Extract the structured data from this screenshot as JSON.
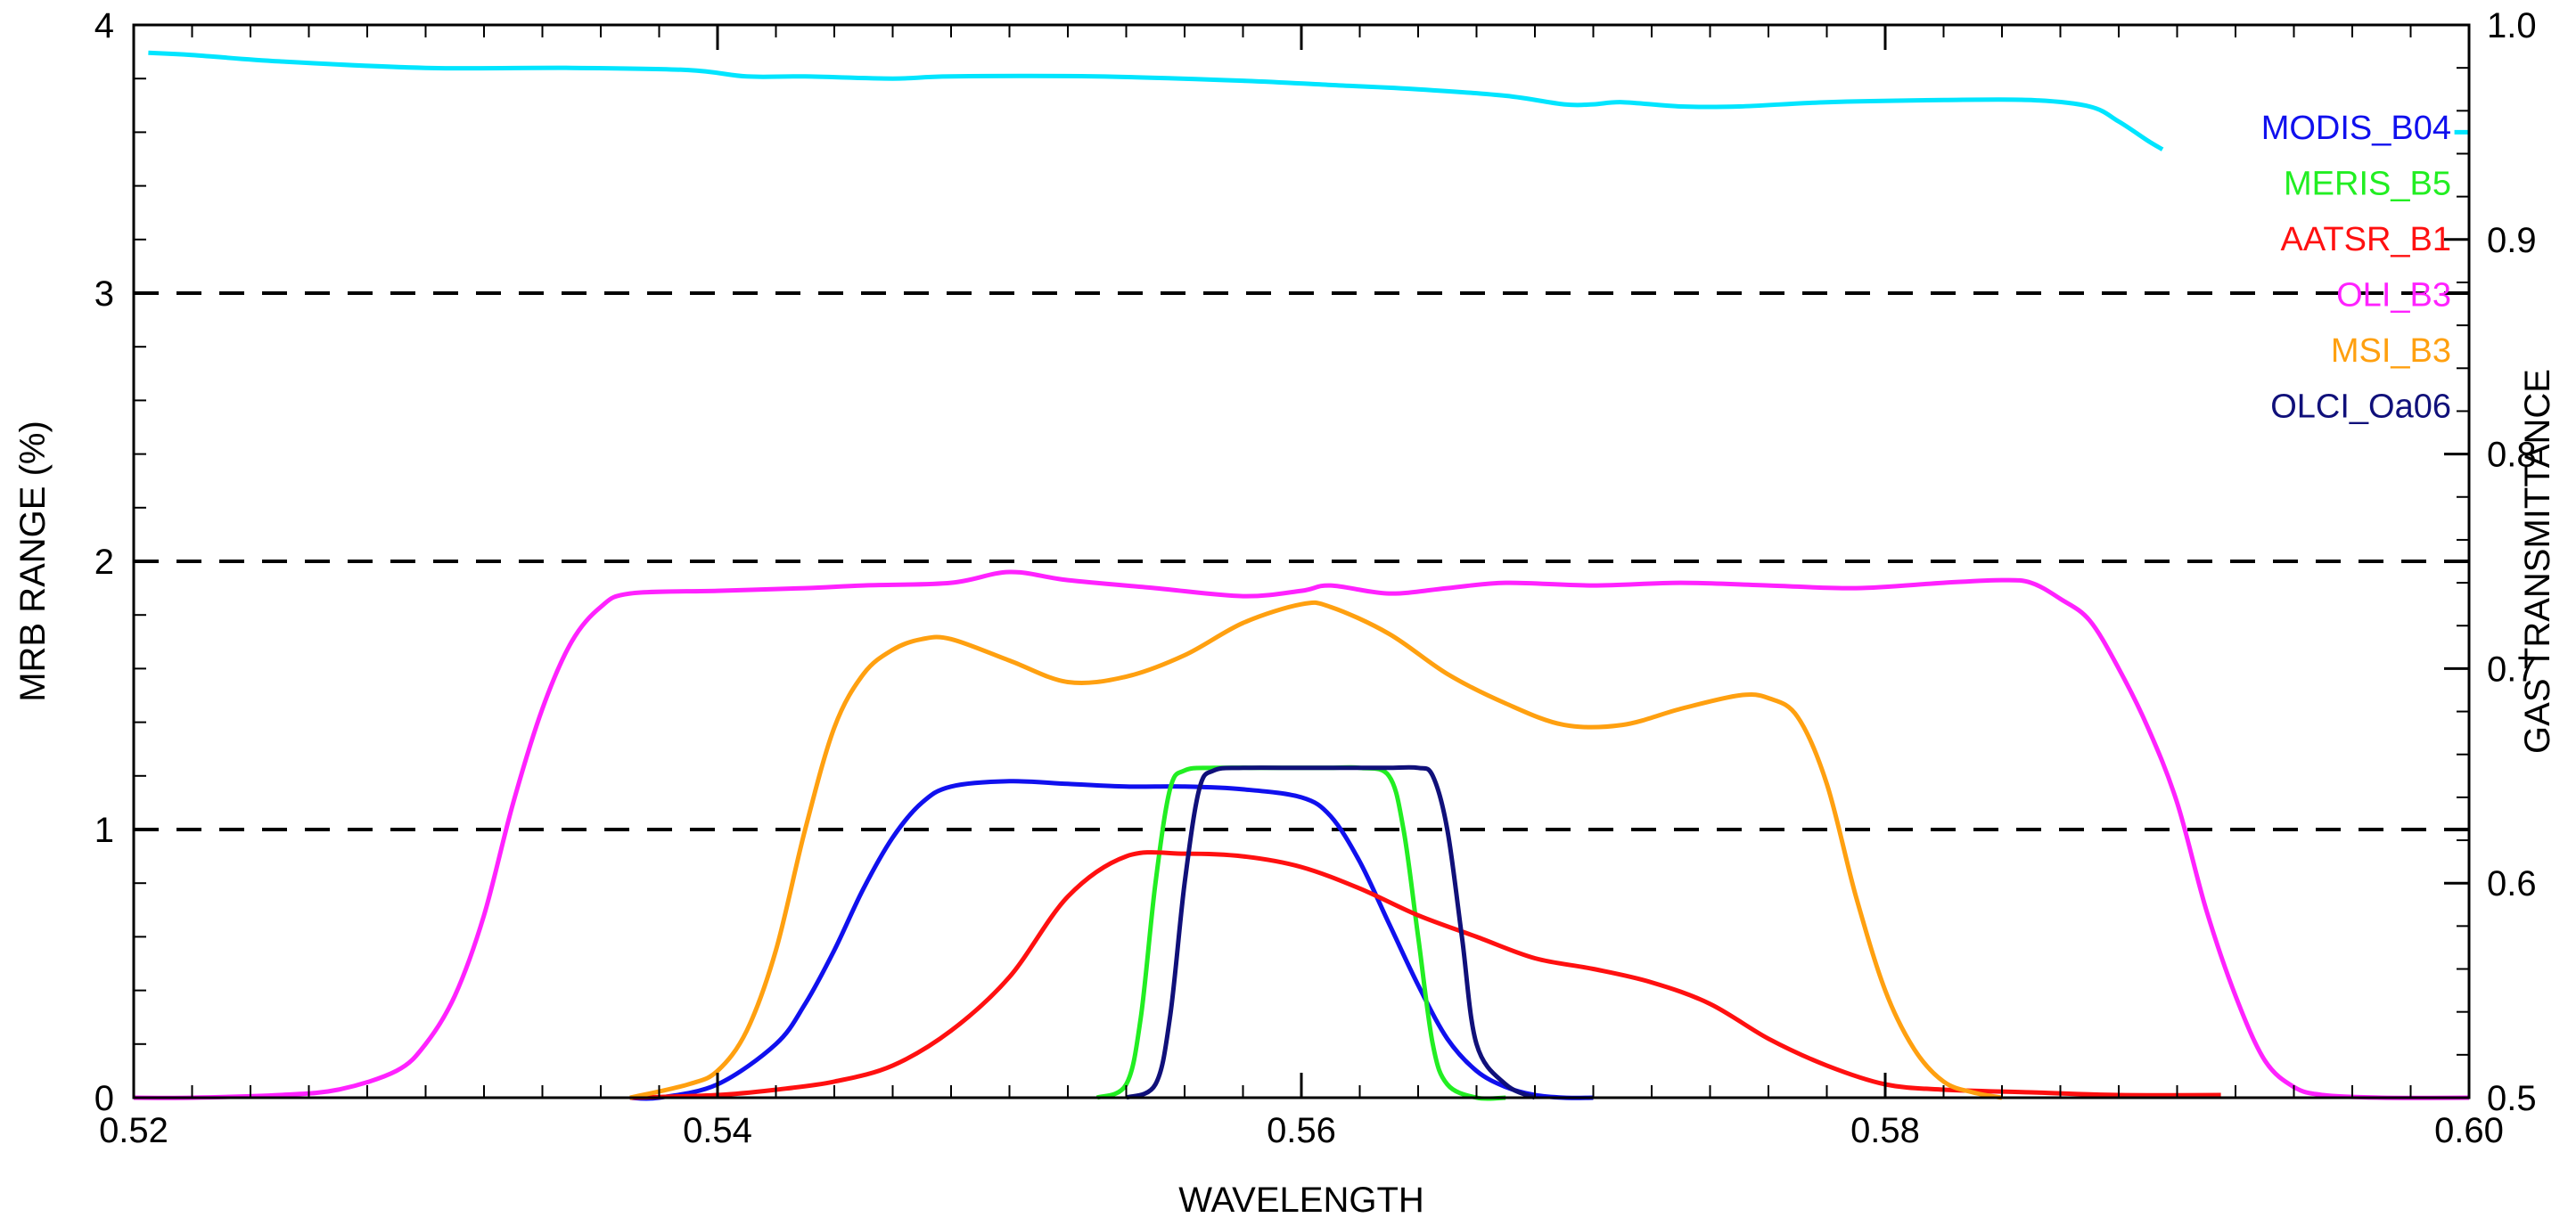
{
  "chart_data": {
    "type": "line",
    "title": "",
    "xlabel": "WAVELENGTH",
    "ylabel": "MRB RANGE (%)",
    "y2label": "GAS TRANSMITTANCE",
    "xlim": [
      0.52,
      0.6
    ],
    "ylim": [
      0,
      4
    ],
    "y2lim": [
      0.5,
      1.0
    ],
    "xticks": [
      "0.52",
      "0.54",
      "0.56",
      "0.58",
      "0.60"
    ],
    "yticks": [
      "0",
      "1",
      "2",
      "3",
      "4"
    ],
    "y2ticks": [
      "0.5",
      "0.6",
      "0.7",
      "0.8",
      "0.9",
      "1.0"
    ],
    "reference_lines": [
      1,
      2,
      3
    ],
    "legend_position": "top-right",
    "gas_transmittance": {
      "name": "Gas transmittance",
      "color": "#00e5ff",
      "x": [
        0.5205,
        0.522,
        0.525,
        0.53,
        0.535,
        0.539,
        0.541,
        0.543,
        0.546,
        0.548,
        0.553,
        0.558,
        0.561,
        0.564,
        0.567,
        0.569,
        0.57,
        0.571,
        0.573,
        0.575,
        0.578,
        0.582,
        0.585,
        0.587,
        0.588,
        0.589,
        0.5895,
        0.5995,
        0.6
      ],
      "values": [
        0.987,
        0.986,
        0.983,
        0.98,
        0.98,
        0.979,
        0.976,
        0.976,
        0.975,
        0.976,
        0.976,
        0.974,
        0.972,
        0.97,
        0.967,
        0.963,
        0.963,
        0.964,
        0.962,
        0.962,
        0.964,
        0.965,
        0.965,
        0.962,
        0.955,
        0.946,
        0.942,
        0.95,
        0.95
      ]
    },
    "series": [
      {
        "name": "MODIS_B04",
        "color": "#1010ee",
        "x": [
          0.537,
          0.538,
          0.54,
          0.542,
          0.543,
          0.544,
          0.545,
          0.546,
          0.547,
          0.548,
          0.55,
          0.552,
          0.554,
          0.556,
          0.558,
          0.56,
          0.561,
          0.562,
          0.563,
          0.564,
          0.565,
          0.566,
          0.567,
          0.568,
          0.569,
          0.57
        ],
        "values": [
          0.0,
          0.0,
          0.05,
          0.2,
          0.35,
          0.55,
          0.78,
          0.97,
          1.1,
          1.16,
          1.18,
          1.17,
          1.16,
          1.16,
          1.15,
          1.12,
          1.05,
          0.88,
          0.65,
          0.42,
          0.22,
          0.1,
          0.04,
          0.01,
          0.0,
          0.0
        ]
      },
      {
        "name": "MERIS_B5",
        "color": "#22ee22",
        "x": [
          0.553,
          0.554,
          0.5545,
          0.555,
          0.5555,
          0.556,
          0.557,
          0.559,
          0.561,
          0.562,
          0.563,
          0.5635,
          0.564,
          0.5645,
          0.565,
          0.566,
          0.567
        ],
        "values": [
          0.0,
          0.05,
          0.3,
          0.8,
          1.15,
          1.22,
          1.23,
          1.23,
          1.23,
          1.23,
          1.2,
          1.0,
          0.6,
          0.2,
          0.05,
          0.0,
          0.0
        ]
      },
      {
        "name": "AATSR_B1",
        "color": "#ff1010",
        "x": [
          0.537,
          0.54,
          0.542,
          0.544,
          0.546,
          0.548,
          0.55,
          0.552,
          0.554,
          0.556,
          0.558,
          0.56,
          0.562,
          0.564,
          0.566,
          0.568,
          0.57,
          0.572,
          0.574,
          0.576,
          0.578,
          0.58,
          0.582,
          0.585,
          0.588,
          0.5915
        ],
        "values": [
          0.0,
          0.01,
          0.03,
          0.06,
          0.12,
          0.25,
          0.45,
          0.75,
          0.9,
          0.91,
          0.9,
          0.86,
          0.78,
          0.68,
          0.6,
          0.52,
          0.48,
          0.43,
          0.35,
          0.22,
          0.12,
          0.05,
          0.03,
          0.02,
          0.01,
          0.01
        ]
      },
      {
        "name": "OLI_B3",
        "color": "#ff22ff",
        "x": [
          0.52,
          0.522,
          0.525,
          0.527,
          0.529,
          0.53,
          0.531,
          0.532,
          0.533,
          0.534,
          0.535,
          0.536,
          0.537,
          0.54,
          0.543,
          0.545,
          0.548,
          0.55,
          0.552,
          0.555,
          0.558,
          0.56,
          0.561,
          0.563,
          0.565,
          0.567,
          0.57,
          0.573,
          0.576,
          0.579,
          0.582,
          0.584,
          0.585,
          0.586,
          0.587,
          0.588,
          0.589,
          0.59,
          0.591,
          0.592,
          0.593,
          0.594,
          0.595,
          0.597,
          0.6
        ],
        "values": [
          0.0,
          0.0,
          0.01,
          0.03,
          0.1,
          0.2,
          0.38,
          0.68,
          1.1,
          1.45,
          1.7,
          1.83,
          1.88,
          1.89,
          1.9,
          1.91,
          1.92,
          1.96,
          1.93,
          1.9,
          1.87,
          1.89,
          1.91,
          1.88,
          1.9,
          1.92,
          1.91,
          1.92,
          1.91,
          1.9,
          1.92,
          1.93,
          1.92,
          1.86,
          1.78,
          1.6,
          1.38,
          1.1,
          0.7,
          0.38,
          0.14,
          0.04,
          0.01,
          0.0,
          0.0
        ]
      },
      {
        "name": "MSI_B3",
        "color": "#ffa010",
        "x": [
          0.537,
          0.539,
          0.54,
          0.541,
          0.542,
          0.543,
          0.544,
          0.545,
          0.546,
          0.547,
          0.548,
          0.55,
          0.552,
          0.554,
          0.556,
          0.558,
          0.56,
          0.561,
          0.563,
          0.565,
          0.567,
          0.569,
          0.571,
          0.573,
          0.575,
          0.576,
          0.577,
          0.578,
          0.579,
          0.58,
          0.581,
          0.582,
          0.583,
          0.584
        ],
        "values": [
          0.0,
          0.05,
          0.1,
          0.25,
          0.55,
          1.0,
          1.38,
          1.58,
          1.67,
          1.71,
          1.71,
          1.63,
          1.55,
          1.57,
          1.65,
          1.77,
          1.84,
          1.83,
          1.73,
          1.58,
          1.47,
          1.39,
          1.39,
          1.45,
          1.5,
          1.49,
          1.42,
          1.17,
          0.75,
          0.4,
          0.18,
          0.06,
          0.02,
          0.0
        ]
      },
      {
        "name": "OLCI_Oa06",
        "color": "#10107a",
        "x": [
          0.554,
          0.555,
          0.5555,
          0.556,
          0.5565,
          0.557,
          0.558,
          0.56,
          0.562,
          0.563,
          0.564,
          0.5645,
          0.565,
          0.5655,
          0.566,
          0.567,
          0.568
        ],
        "values": [
          0.0,
          0.05,
          0.3,
          0.8,
          1.15,
          1.22,
          1.23,
          1.23,
          1.23,
          1.23,
          1.23,
          1.2,
          1.0,
          0.6,
          0.2,
          0.05,
          0.0
        ]
      }
    ]
  }
}
